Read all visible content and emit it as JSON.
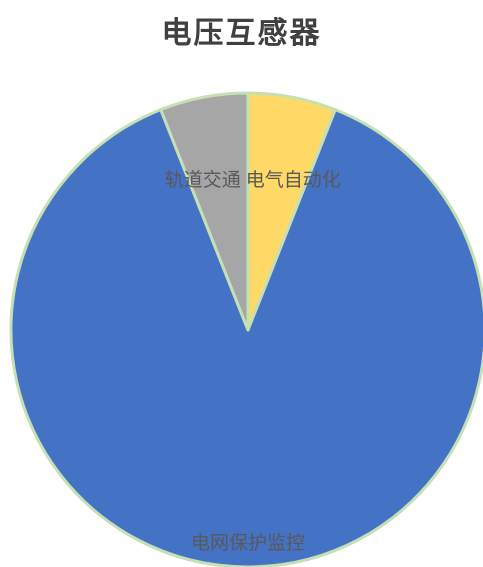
{
  "chart_data": {
    "type": "pie",
    "title": "电压互感器",
    "slices": [
      {
        "label": "电气自动化",
        "value": 6,
        "color": "#FFD966"
      },
      {
        "label": "电网保护监控",
        "value": 88,
        "color": "#4472C4"
      },
      {
        "label": "轨道交通",
        "value": 6,
        "color": "#A6A6A6"
      }
    ],
    "slice_border_color": "#C5E0B4",
    "legend": "none"
  }
}
